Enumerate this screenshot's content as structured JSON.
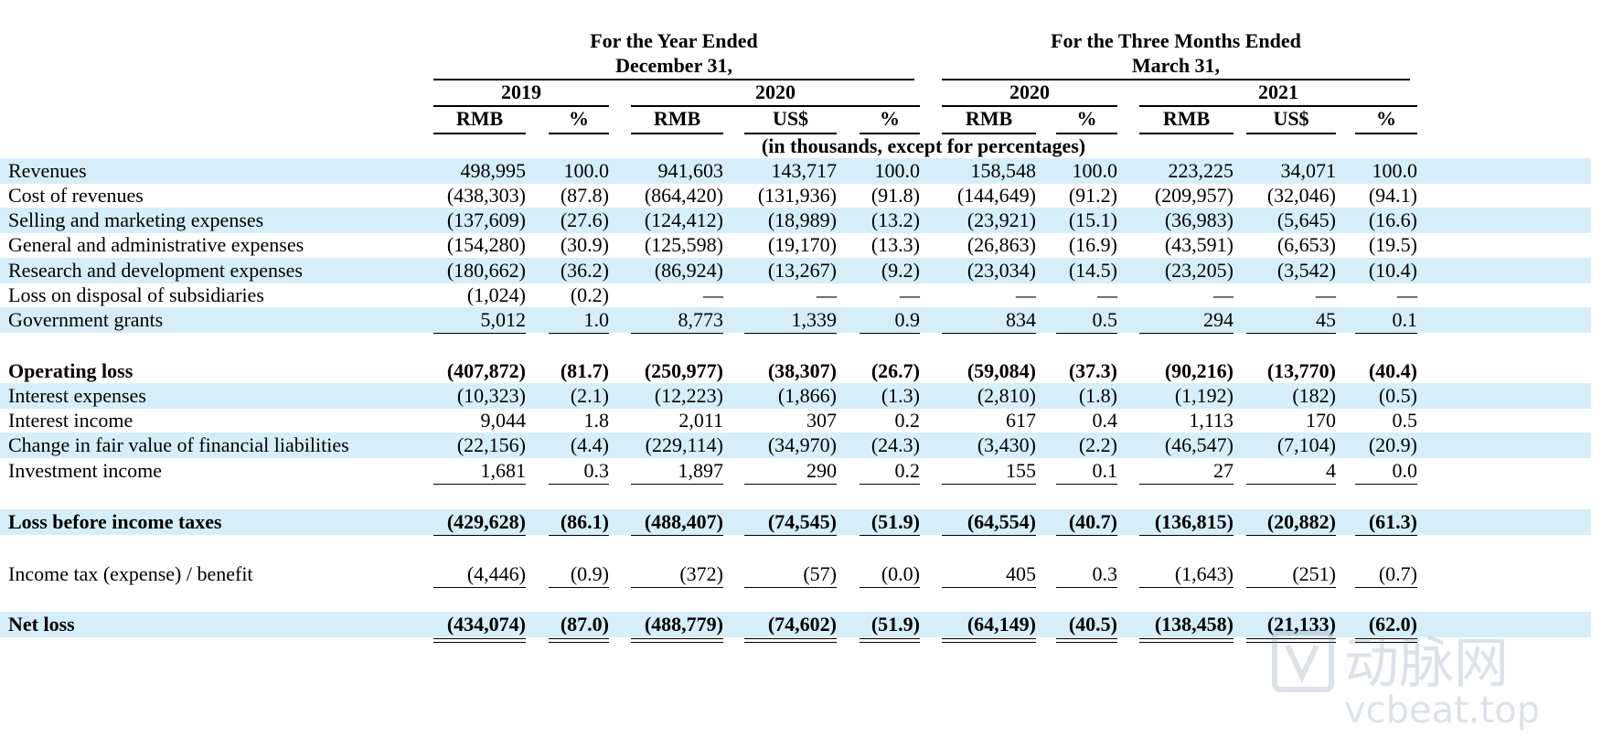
{
  "header": {
    "year_group": [
      "For the Year Ended",
      "December 31,"
    ],
    "quarter_group": [
      "For the Three Months Ended",
      "March 31,"
    ],
    "years": [
      "2019",
      "2020",
      "2020",
      "2021"
    ],
    "currencies": [
      "RMB",
      "%",
      "RMB",
      "US$",
      "%",
      "RMB",
      "%",
      "RMB",
      "US$",
      "%"
    ],
    "note": "(in thousands, except for percentages)"
  },
  "rows": [
    {
      "label": "Revenues",
      "values": [
        "498,995",
        "100.0",
        "941,603",
        "143,717",
        "100.0",
        "158,548",
        "100.0",
        "223,225",
        "34,071",
        "100.0"
      ]
    },
    {
      "label": "Cost of revenues",
      "values": [
        "(438,303)",
        "(87.8)",
        "(864,420)",
        "(131,936)",
        "(91.8)",
        "(144,649)",
        "(91.2)",
        "(209,957)",
        "(32,046)",
        "(94.1)"
      ]
    },
    {
      "label": "Selling and marketing expenses",
      "values": [
        "(137,609)",
        "(27.6)",
        "(124,412)",
        "(18,989)",
        "(13.2)",
        "(23,921)",
        "(15.1)",
        "(36,983)",
        "(5,645)",
        "(16.6)"
      ]
    },
    {
      "label": "General and administrative expenses",
      "values": [
        "(154,280)",
        "(30.9)",
        "(125,598)",
        "(19,170)",
        "(13.3)",
        "(26,863)",
        "(16.9)",
        "(43,591)",
        "(6,653)",
        "(19.5)"
      ]
    },
    {
      "label": "Research and development expenses",
      "values": [
        "(180,662)",
        "(36.2)",
        "(86,924)",
        "(13,267)",
        "(9.2)",
        "(23,034)",
        "(14.5)",
        "(23,205)",
        "(3,542)",
        "(10.4)"
      ]
    },
    {
      "label": "Loss on disposal of subsidiaries",
      "values": [
        "(1,024)",
        "(0.2)",
        "—",
        "—",
        "—",
        "—",
        "—",
        "—",
        "—",
        "—"
      ]
    },
    {
      "label": "Government grants",
      "values": [
        "5,012",
        "1.0",
        "8,773",
        "1,339",
        "0.9",
        "834",
        "0.5",
        "294",
        "45",
        "0.1"
      ]
    },
    {
      "label": "Operating loss",
      "values": [
        "(407,872)",
        "(81.7)",
        "(250,977)",
        "(38,307)",
        "(26.7)",
        "(59,084)",
        "(37.3)",
        "(90,216)",
        "(13,770)",
        "(40.4)"
      ]
    },
    {
      "label": "Interest expenses",
      "values": [
        "(10,323)",
        "(2.1)",
        "(12,223)",
        "(1,866)",
        "(1.3)",
        "(2,810)",
        "(1.8)",
        "(1,192)",
        "(182)",
        "(0.5)"
      ]
    },
    {
      "label": "Interest income",
      "values": [
        "9,044",
        "1.8",
        "2,011",
        "307",
        "0.2",
        "617",
        "0.4",
        "1,113",
        "170",
        "0.5"
      ]
    },
    {
      "label": "Change in fair value of financial liabilities",
      "values": [
        "(22,156)",
        "(4.4)",
        "(229,114)",
        "(34,970)",
        "(24.3)",
        "(3,430)",
        "(2.2)",
        "(46,547)",
        "(7,104)",
        "(20.9)"
      ]
    },
    {
      "label": "Investment income",
      "values": [
        "1,681",
        "0.3",
        "1,897",
        "290",
        "0.2",
        "155",
        "0.1",
        "27",
        "4",
        "0.0"
      ]
    },
    {
      "label": "Loss before income taxes",
      "values": [
        "(429,628)",
        "(86.1)",
        "(488,407)",
        "(74,545)",
        "(51.9)",
        "(64,554)",
        "(40.7)",
        "(136,815)",
        "(20,882)",
        "(61.3)"
      ]
    },
    {
      "label": "Income tax (expense) / benefit",
      "values": [
        "(4,446)",
        "(0.9)",
        "(372)",
        "(57)",
        "(0.0)",
        "405",
        "0.3",
        "(1,643)",
        "(251)",
        "(0.7)"
      ]
    },
    {
      "label": "Net loss",
      "values": [
        "(434,074)",
        "(87.0)",
        "(488,779)",
        "(74,602)",
        "(51.9)",
        "(64,149)",
        "(40.5)",
        "(138,458)",
        "(21,133)",
        "(62.0)"
      ]
    }
  ],
  "watermark": {
    "text": "动脉网",
    "url": "vcbeat.top"
  }
}
